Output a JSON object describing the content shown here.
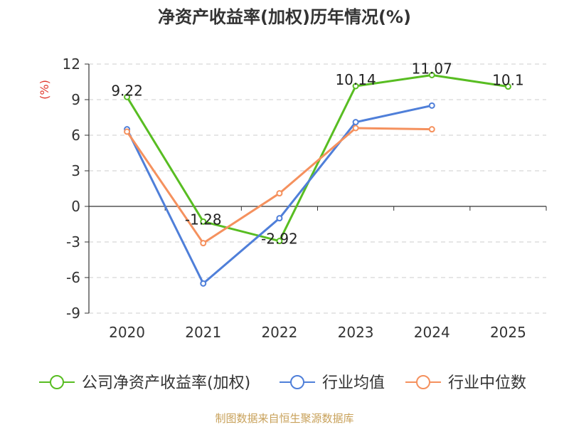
{
  "chart_data": {
    "type": "line",
    "title": "净资产收益率(加权)历年情况(%)",
    "ylabel": "(%)",
    "xlabel": "",
    "ylim": [
      -9,
      12
    ],
    "yticks": [
      12,
      9,
      6,
      3,
      0,
      -3,
      -6,
      -9
    ],
    "categories": [
      "2020",
      "2021",
      "2022",
      "2023",
      "2024",
      "2025"
    ],
    "grid": "horizontal dashed",
    "legend_position": "bottom",
    "series": [
      {
        "name": "公司净资产收益率(加权)",
        "color": "#58bd22",
        "values": [
          9.22,
          -1.28,
          -2.92,
          10.14,
          11.07,
          10.1
        ],
        "labels": [
          "9.22",
          "-1.28",
          "-2.92",
          "10.14",
          "11.07",
          "10.1"
        ]
      },
      {
        "name": "行业均值",
        "color": "#4f7fd9",
        "values": [
          6.5,
          -6.5,
          -1.0,
          7.1,
          8.5,
          null
        ]
      },
      {
        "name": "行业中位数",
        "color": "#f5915e",
        "values": [
          6.3,
          -3.1,
          1.1,
          6.6,
          6.5,
          null
        ]
      }
    ],
    "source": "制图数据来自恒生聚源数据库",
    "source_color": "#c8a15a",
    "ylabel_color": "#e03a2f"
  }
}
